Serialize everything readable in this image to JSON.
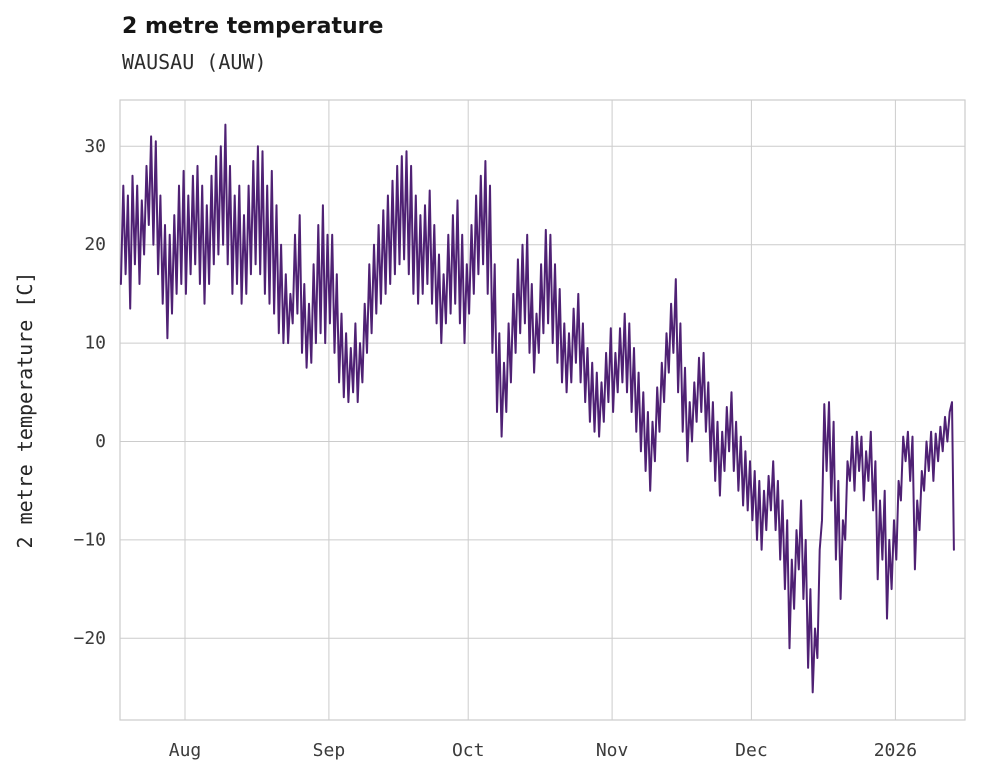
{
  "header": {
    "title": "2 metre temperature",
    "subtitle": "WAUSAU (AUW)"
  },
  "chart_data": {
    "type": "line",
    "title": "2 metre temperature",
    "subtitle": "WAUSAU (AUW)",
    "xlabel": "",
    "ylabel": "2 metre temperature [C]",
    "line_color": "#4f2174",
    "grid": true,
    "grid_color": "#cccccc",
    "x_range": [
      0,
      182
    ],
    "y_range": [
      -28.3,
      34.7
    ],
    "x_ticks": [
      {
        "pos": 14,
        "label": "Aug"
      },
      {
        "pos": 45,
        "label": "Sep"
      },
      {
        "pos": 75,
        "label": "Oct"
      },
      {
        "pos": 106,
        "label": "Nov"
      },
      {
        "pos": 136,
        "label": "Dec"
      },
      {
        "pos": 167,
        "label": "2026"
      }
    ],
    "y_ticks": [
      {
        "value": 30,
        "label": "30"
      },
      {
        "value": 20,
        "label": "20"
      },
      {
        "value": 10,
        "label": "10"
      },
      {
        "value": 0,
        "label": "0"
      },
      {
        "value": -10,
        "label": "−10"
      },
      {
        "value": -20,
        "label": "−20"
      }
    ],
    "points": [
      [
        0.2,
        16
      ],
      [
        0.7,
        26
      ],
      [
        1.2,
        17
      ],
      [
        1.7,
        25
      ],
      [
        2.2,
        13.5
      ],
      [
        2.7,
        27
      ],
      [
        3.2,
        18
      ],
      [
        3.7,
        26
      ],
      [
        4.2,
        16
      ],
      [
        4.7,
        24.5
      ],
      [
        5.2,
        19
      ],
      [
        5.7,
        28
      ],
      [
        6.2,
        22
      ],
      [
        6.7,
        31
      ],
      [
        7.2,
        20
      ],
      [
        7.7,
        30.5
      ],
      [
        8.2,
        17
      ],
      [
        8.7,
        25
      ],
      [
        9.2,
        14
      ],
      [
        9.7,
        22
      ],
      [
        10.2,
        10.5
      ],
      [
        10.7,
        21
      ],
      [
        11.2,
        13
      ],
      [
        11.7,
        23
      ],
      [
        12.2,
        15
      ],
      [
        12.7,
        26
      ],
      [
        13.2,
        16
      ],
      [
        13.7,
        27.5
      ],
      [
        14.2,
        15
      ],
      [
        14.7,
        25
      ],
      [
        15.2,
        17
      ],
      [
        15.7,
        27
      ],
      [
        16.2,
        18
      ],
      [
        16.7,
        28
      ],
      [
        17.2,
        16
      ],
      [
        17.7,
        26
      ],
      [
        18.2,
        14
      ],
      [
        18.7,
        24
      ],
      [
        19.2,
        16
      ],
      [
        19.7,
        27
      ],
      [
        20.2,
        18
      ],
      [
        20.7,
        29
      ],
      [
        21.2,
        19
      ],
      [
        21.7,
        30
      ],
      [
        22.2,
        20
      ],
      [
        22.7,
        32.2
      ],
      [
        23.2,
        18
      ],
      [
        23.7,
        28
      ],
      [
        24.2,
        15
      ],
      [
        24.7,
        25
      ],
      [
        25.2,
        16
      ],
      [
        25.7,
        26
      ],
      [
        26.2,
        14
      ],
      [
        26.7,
        23
      ],
      [
        27.2,
        15
      ],
      [
        27.7,
        26
      ],
      [
        28.2,
        17
      ],
      [
        28.7,
        28.5
      ],
      [
        29.2,
        18
      ],
      [
        29.7,
        30
      ],
      [
        30.2,
        17
      ],
      [
        30.7,
        29.5
      ],
      [
        31.2,
        15
      ],
      [
        31.7,
        26
      ],
      [
        32.2,
        14
      ],
      [
        32.7,
        27.5
      ],
      [
        33.2,
        13
      ],
      [
        33.7,
        24
      ],
      [
        34.2,
        11
      ],
      [
        34.7,
        20
      ],
      [
        35.2,
        10
      ],
      [
        35.7,
        17
      ],
      [
        36.2,
        10
      ],
      [
        36.7,
        15
      ],
      [
        37.2,
        12
      ],
      [
        37.7,
        21
      ],
      [
        38.2,
        13
      ],
      [
        38.7,
        23
      ],
      [
        39.2,
        9
      ],
      [
        39.7,
        16
      ],
      [
        40.2,
        7.5
      ],
      [
        40.7,
        14
      ],
      [
        41.2,
        8
      ],
      [
        41.7,
        18
      ],
      [
        42.2,
        10
      ],
      [
        42.7,
        22
      ],
      [
        43.2,
        11
      ],
      [
        43.7,
        24
      ],
      [
        44.2,
        10
      ],
      [
        44.7,
        21
      ],
      [
        45.2,
        12
      ],
      [
        45.7,
        21
      ],
      [
        46.2,
        9
      ],
      [
        46.7,
        17
      ],
      [
        47.2,
        6
      ],
      [
        47.7,
        13
      ],
      [
        48.2,
        4.5
      ],
      [
        48.7,
        11
      ],
      [
        49.2,
        4
      ],
      [
        49.7,
        9.5
      ],
      [
        50.2,
        5
      ],
      [
        50.7,
        12
      ],
      [
        51.2,
        4
      ],
      [
        51.7,
        10
      ],
      [
        52.2,
        6
      ],
      [
        52.7,
        14
      ],
      [
        53.2,
        9
      ],
      [
        53.7,
        18
      ],
      [
        54.2,
        11
      ],
      [
        54.7,
        20
      ],
      [
        55.2,
        13
      ],
      [
        55.7,
        22
      ],
      [
        56.2,
        14
      ],
      [
        56.7,
        23.5
      ],
      [
        57.2,
        15
      ],
      [
        57.7,
        25
      ],
      [
        58.2,
        16
      ],
      [
        58.7,
        26.5
      ],
      [
        59.2,
        17
      ],
      [
        59.7,
        28
      ],
      [
        60.2,
        18
      ],
      [
        60.7,
        29
      ],
      [
        61.2,
        18.5
      ],
      [
        61.7,
        29.5
      ],
      [
        62.2,
        17
      ],
      [
        62.7,
        28
      ],
      [
        63.2,
        15
      ],
      [
        63.7,
        25
      ],
      [
        64.2,
        14
      ],
      [
        64.7,
        23
      ],
      [
        65.2,
        15
      ],
      [
        65.7,
        24
      ],
      [
        66.2,
        16
      ],
      [
        66.7,
        25.5
      ],
      [
        67.2,
        14
      ],
      [
        67.7,
        22
      ],
      [
        68.2,
        12
      ],
      [
        68.7,
        19
      ],
      [
        69.2,
        10
      ],
      [
        69.7,
        17
      ],
      [
        70.2,
        12
      ],
      [
        70.7,
        21
      ],
      [
        71.2,
        13
      ],
      [
        71.7,
        23
      ],
      [
        72.2,
        14
      ],
      [
        72.7,
        24.5
      ],
      [
        73.2,
        12
      ],
      [
        73.7,
        21
      ],
      [
        74.2,
        10
      ],
      [
        74.7,
        18
      ],
      [
        75.2,
        13
      ],
      [
        75.7,
        22
      ],
      [
        76.2,
        15
      ],
      [
        76.7,
        25
      ],
      [
        77.2,
        17
      ],
      [
        77.7,
        27
      ],
      [
        78.2,
        18
      ],
      [
        78.7,
        28.5
      ],
      [
        79.2,
        15
      ],
      [
        79.7,
        26
      ],
      [
        80.2,
        9
      ],
      [
        80.7,
        18
      ],
      [
        81.2,
        3
      ],
      [
        81.7,
        11
      ],
      [
        82.2,
        0.5
      ],
      [
        82.7,
        8
      ],
      [
        83.2,
        3
      ],
      [
        83.7,
        12
      ],
      [
        84.2,
        6
      ],
      [
        84.7,
        15
      ],
      [
        85.2,
        9
      ],
      [
        85.7,
        18.5
      ],
      [
        86.2,
        11
      ],
      [
        86.7,
        20
      ],
      [
        87.2,
        12
      ],
      [
        87.7,
        21
      ],
      [
        88.2,
        9
      ],
      [
        88.7,
        16
      ],
      [
        89.2,
        7
      ],
      [
        89.7,
        13
      ],
      [
        90.2,
        9
      ],
      [
        90.7,
        18
      ],
      [
        91.2,
        11
      ],
      [
        91.7,
        21.5
      ],
      [
        92.2,
        12
      ],
      [
        92.7,
        21
      ],
      [
        93.2,
        10
      ],
      [
        93.7,
        18
      ],
      [
        94.2,
        8
      ],
      [
        94.7,
        15.5
      ],
      [
        95.2,
        6
      ],
      [
        95.7,
        12
      ],
      [
        96.2,
        5
      ],
      [
        96.7,
        11
      ],
      [
        97.2,
        6
      ],
      [
        97.7,
        13.5
      ],
      [
        98.2,
        8
      ],
      [
        98.7,
        15
      ],
      [
        99.2,
        6
      ],
      [
        99.7,
        12
      ],
      [
        100.2,
        4
      ],
      [
        100.7,
        9.5
      ],
      [
        101.2,
        2
      ],
      [
        101.7,
        8
      ],
      [
        102.2,
        1
      ],
      [
        102.7,
        7
      ],
      [
        103.2,
        0.5
      ],
      [
        103.7,
        6
      ],
      [
        104.2,
        2
      ],
      [
        104.7,
        9
      ],
      [
        105.2,
        4
      ],
      [
        105.7,
        11.5
      ],
      [
        106.2,
        3
      ],
      [
        106.7,
        9
      ],
      [
        107.2,
        5
      ],
      [
        107.7,
        11.5
      ],
      [
        108.2,
        6
      ],
      [
        108.7,
        13
      ],
      [
        109.2,
        5
      ],
      [
        109.7,
        12
      ],
      [
        110.2,
        3
      ],
      [
        110.7,
        9.5
      ],
      [
        111.2,
        1
      ],
      [
        111.7,
        7
      ],
      [
        112.2,
        -1
      ],
      [
        112.7,
        5
      ],
      [
        113.2,
        -3
      ],
      [
        113.7,
        3
      ],
      [
        114.2,
        -5
      ],
      [
        114.7,
        2
      ],
      [
        115.2,
        -2
      ],
      [
        115.7,
        5.5
      ],
      [
        116.2,
        1
      ],
      [
        116.7,
        8
      ],
      [
        117.2,
        4
      ],
      [
        117.7,
        11
      ],
      [
        118.2,
        7
      ],
      [
        118.7,
        14
      ],
      [
        119.2,
        9
      ],
      [
        119.7,
        16.5
      ],
      [
        120.2,
        5
      ],
      [
        120.7,
        12
      ],
      [
        121.2,
        1
      ],
      [
        121.7,
        7.5
      ],
      [
        122.2,
        -2
      ],
      [
        122.7,
        4
      ],
      [
        123.2,
        0
      ],
      [
        123.7,
        6
      ],
      [
        124.2,
        2
      ],
      [
        124.7,
        8.5
      ],
      [
        125.2,
        3
      ],
      [
        125.7,
        9
      ],
      [
        126.2,
        1
      ],
      [
        126.7,
        6
      ],
      [
        127.2,
        -2
      ],
      [
        127.7,
        4
      ],
      [
        128.2,
        -4
      ],
      [
        128.7,
        2
      ],
      [
        129.2,
        -5.5
      ],
      [
        129.7,
        1
      ],
      [
        130.2,
        -3
      ],
      [
        130.7,
        3.5
      ],
      [
        131.2,
        -1
      ],
      [
        131.7,
        5
      ],
      [
        132.2,
        -3
      ],
      [
        132.7,
        2
      ],
      [
        133.2,
        -5
      ],
      [
        133.7,
        0.5
      ],
      [
        134.2,
        -6.5
      ],
      [
        134.7,
        -1
      ],
      [
        135.2,
        -7
      ],
      [
        135.7,
        -2
      ],
      [
        136.2,
        -8
      ],
      [
        136.7,
        -3
      ],
      [
        137.2,
        -10
      ],
      [
        137.7,
        -4
      ],
      [
        138.2,
        -11
      ],
      [
        138.7,
        -5
      ],
      [
        139.2,
        -9
      ],
      [
        139.7,
        -3.5
      ],
      [
        140.2,
        -7
      ],
      [
        140.7,
        -2
      ],
      [
        141.2,
        -9
      ],
      [
        141.7,
        -4
      ],
      [
        142.2,
        -12
      ],
      [
        142.7,
        -6
      ],
      [
        143.2,
        -15
      ],
      [
        143.7,
        -8
      ],
      [
        144.2,
        -21
      ],
      [
        144.7,
        -12
      ],
      [
        145.2,
        -17
      ],
      [
        145.7,
        -9
      ],
      [
        146.2,
        -13
      ],
      [
        146.7,
        -6
      ],
      [
        147.2,
        -16
      ],
      [
        147.7,
        -10
      ],
      [
        148.2,
        -23
      ],
      [
        148.7,
        -15
      ],
      [
        149.2,
        -25.5
      ],
      [
        149.7,
        -19
      ],
      [
        150.2,
        -22
      ],
      [
        150.7,
        -11
      ],
      [
        151.2,
        -8
      ],
      [
        151.7,
        3.8
      ],
      [
        152.2,
        -3
      ],
      [
        152.7,
        4
      ],
      [
        153.2,
        -6
      ],
      [
        153.7,
        2
      ],
      [
        154.2,
        -12
      ],
      [
        154.7,
        -4
      ],
      [
        155.2,
        -16
      ],
      [
        155.7,
        -8
      ],
      [
        156.2,
        -10
      ],
      [
        156.7,
        -2
      ],
      [
        157.2,
        -4
      ],
      [
        157.7,
        0.5
      ],
      [
        158.2,
        -5
      ],
      [
        158.7,
        1
      ],
      [
        159.2,
        -3
      ],
      [
        159.7,
        0.5
      ],
      [
        160.2,
        -6
      ],
      [
        160.7,
        -1
      ],
      [
        161.2,
        -4
      ],
      [
        161.7,
        1
      ],
      [
        162.2,
        -7
      ],
      [
        162.7,
        -2
      ],
      [
        163.2,
        -14
      ],
      [
        163.7,
        -6
      ],
      [
        164.2,
        -12
      ],
      [
        164.7,
        -5
      ],
      [
        165.2,
        -18
      ],
      [
        165.7,
        -10
      ],
      [
        166.2,
        -15
      ],
      [
        166.7,
        -8
      ],
      [
        167.2,
        -12
      ],
      [
        167.7,
        -4
      ],
      [
        168.2,
        -6
      ],
      [
        168.7,
        0.5
      ],
      [
        169.2,
        -2
      ],
      [
        169.7,
        1
      ],
      [
        170.2,
        -4
      ],
      [
        170.7,
        0.5
      ],
      [
        171.2,
        -13
      ],
      [
        171.7,
        -6
      ],
      [
        172.2,
        -9
      ],
      [
        172.7,
        -3
      ],
      [
        173.2,
        -5
      ],
      [
        173.7,
        0
      ],
      [
        174.2,
        -3
      ],
      [
        174.7,
        1
      ],
      [
        175.2,
        -4
      ],
      [
        175.7,
        0.8
      ],
      [
        176.2,
        -2
      ],
      [
        176.7,
        1.5
      ],
      [
        177.2,
        -1
      ],
      [
        177.7,
        2.5
      ],
      [
        178.2,
        0
      ],
      [
        178.7,
        3
      ],
      [
        179.2,
        4
      ],
      [
        179.6,
        -11
      ]
    ]
  }
}
